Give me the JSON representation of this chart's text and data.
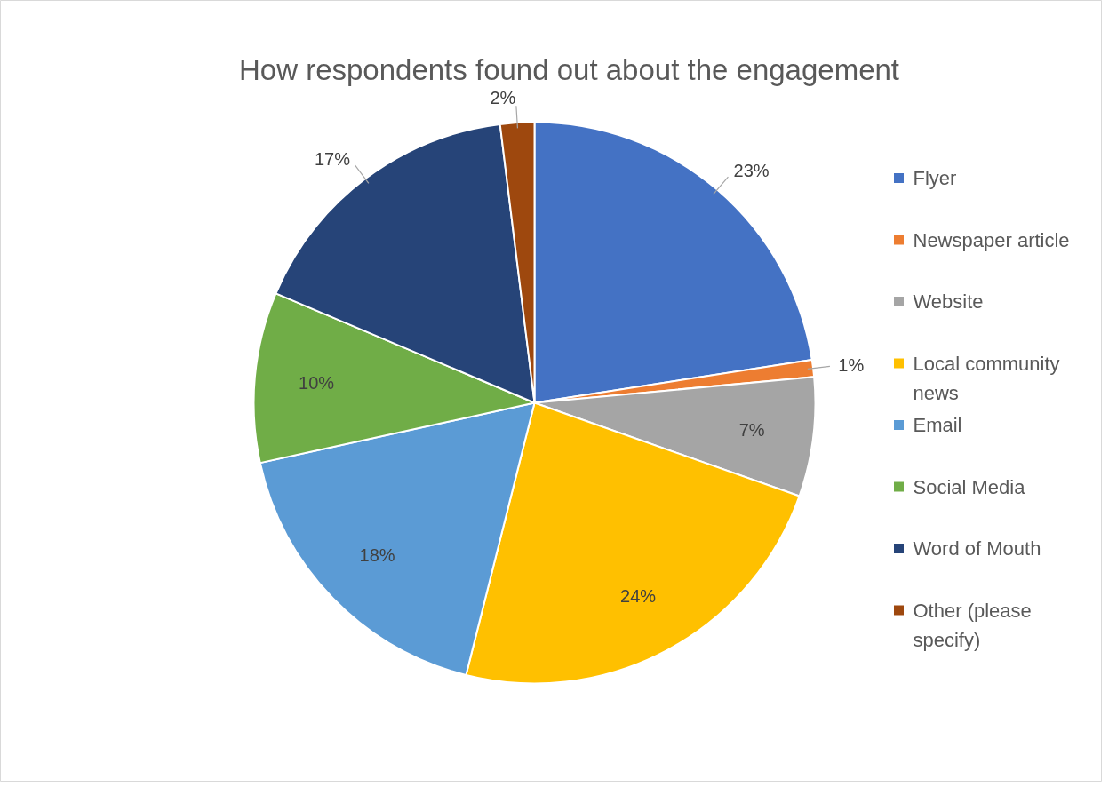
{
  "chart_data": {
    "type": "pie",
    "title": "How respondents found out about the engagement",
    "categories": [
      "Flyer",
      "Newspaper article",
      "Website",
      "Local community news",
      "Email",
      "Social Media",
      "Word of Mouth",
      "Other (please specify)"
    ],
    "values": [
      23,
      1,
      7,
      24,
      18,
      10,
      17,
      2
    ],
    "colors": [
      "#4472c4",
      "#ed7d31",
      "#a5a5a5",
      "#ffc000",
      "#5b9bd5",
      "#70ad47",
      "#264478",
      "#9e480e"
    ],
    "value_labels": [
      "23%",
      "1%",
      "7%",
      "24%",
      "18%",
      "10%",
      "17%",
      "2%"
    ],
    "legend": "right"
  }
}
